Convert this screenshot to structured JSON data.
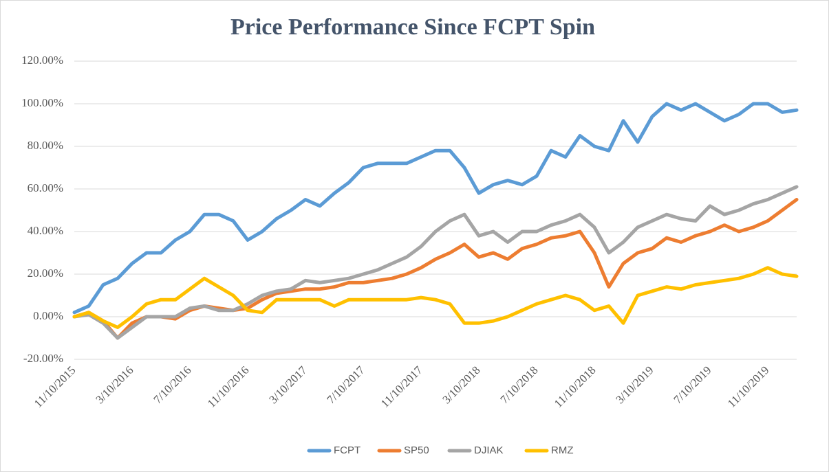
{
  "chart_data": {
    "type": "line",
    "title": "Price Performance Since FCPT Spin",
    "categories": [
      "11/10/2015",
      null,
      null,
      null,
      "3/10/2016",
      null,
      null,
      null,
      "7/10/2016",
      null,
      null,
      null,
      "11/10/2016",
      null,
      null,
      null,
      "3/10/2017",
      null,
      null,
      null,
      "7/10/2017",
      null,
      null,
      null,
      "11/10/2017",
      null,
      null,
      null,
      "3/10/2018",
      null,
      null,
      null,
      "7/10/2018",
      null,
      null,
      null,
      "11/10/2018",
      null,
      null,
      null,
      "3/10/2019",
      null,
      null,
      null,
      "7/10/2019",
      null,
      null,
      null,
      "11/10/2019",
      null,
      null
    ],
    "series": [
      {
        "name": "FCPT",
        "color": "#5b9bd5",
        "values": [
          2,
          5,
          15,
          18,
          25,
          30,
          30,
          36,
          40,
          48,
          48,
          45,
          36,
          40,
          46,
          50,
          55,
          52,
          58,
          63,
          70,
          72,
          72,
          72,
          75,
          78,
          78,
          70,
          58,
          62,
          64,
          62,
          66,
          78,
          75,
          85,
          80,
          78,
          92,
          82,
          94,
          100,
          97,
          100,
          96,
          92,
          95,
          100,
          100,
          96,
          97
        ]
      },
      {
        "name": "SP50",
        "color": "#ed7d31",
        "values": [
          0,
          2,
          -2,
          -10,
          -3,
          0,
          0,
          -1,
          3,
          5,
          4,
          3,
          4,
          8,
          11,
          12,
          13,
          13,
          14,
          16,
          16,
          17,
          18,
          20,
          23,
          27,
          30,
          34,
          28,
          30,
          27,
          32,
          34,
          37,
          38,
          40,
          30,
          14,
          25,
          30,
          32,
          37,
          35,
          38,
          40,
          43,
          40,
          42,
          45,
          50,
          55
        ]
      },
      {
        "name": "DJIAK",
        "color": "#a5a5a5",
        "values": [
          0,
          1,
          -3,
          -10,
          -5,
          0,
          0,
          0,
          4,
          5,
          3,
          3,
          6,
          10,
          12,
          13,
          17,
          16,
          17,
          18,
          20,
          22,
          25,
          28,
          33,
          40,
          45,
          48,
          38,
          40,
          35,
          40,
          40,
          43,
          45,
          48,
          42,
          30,
          35,
          42,
          45,
          48,
          46,
          45,
          52,
          48,
          50,
          53,
          55,
          58,
          61
        ]
      },
      {
        "name": "RMZ",
        "color": "#ffc000",
        "values": [
          0,
          2,
          -2,
          -5,
          0,
          6,
          8,
          8,
          13,
          18,
          14,
          10,
          3,
          2,
          8,
          8,
          8,
          8,
          5,
          8,
          8,
          8,
          8,
          8,
          9,
          8,
          6,
          -3,
          -3,
          -2,
          0,
          3,
          6,
          8,
          10,
          8,
          3,
          5,
          -3,
          10,
          12,
          14,
          13,
          15,
          16,
          17,
          18,
          20,
          23,
          20,
          19
        ]
      }
    ],
    "ylim": [
      -20,
      120
    ],
    "yticks": [
      {
        "value": -20,
        "label": "-20.00%"
      },
      {
        "value": 0,
        "label": "0.00%"
      },
      {
        "value": 20,
        "label": "20.00%"
      },
      {
        "value": 40,
        "label": "40.00%"
      },
      {
        "value": 60,
        "label": "60.00%"
      },
      {
        "value": 80,
        "label": "80.00%"
      },
      {
        "value": 100,
        "label": "100.00%"
      },
      {
        "value": 120,
        "label": "120.00%"
      }
    ],
    "grid": true,
    "legend": "bottom"
  }
}
